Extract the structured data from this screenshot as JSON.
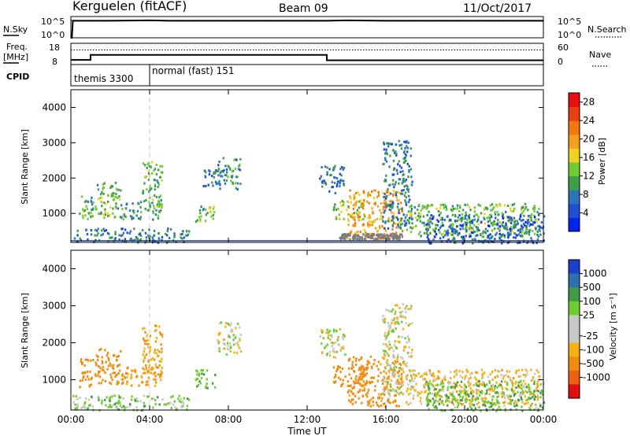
{
  "header": {
    "station": "Kerguelen (fitACF)",
    "beam": "Beam 09",
    "date": "11/Oct/2017"
  },
  "top_panels": {
    "nsky": {
      "left_label": "N.Sky",
      "left_ticks": [
        "10^5",
        "10^0"
      ],
      "right_ticks": [
        "10^5",
        "10^0"
      ],
      "right_label": "N.Search"
    },
    "freq": {
      "left_label_line1": "Freq.",
      "left_label_line2": "[MHz]",
      "left_ticks": [
        "18",
        "8"
      ],
      "right_ticks": [
        "60",
        "0"
      ],
      "right_label": "Nave"
    },
    "cpid": {
      "label": "CPID",
      "segments": [
        "themis 3300",
        "normal (fast) 151"
      ]
    }
  },
  "colors": {
    "power": [
      "#0022ee",
      "#1f4fd2",
      "#2f73b8",
      "#3f9e4a",
      "#6fcc33",
      "#f0d020",
      "#f5a020",
      "#ef7a10",
      "#e84010",
      "#e81010"
    ],
    "velocity": [
      "#1a3fc8",
      "#2f6fb0",
      "#3f9a4a",
      "#6fcc33",
      "#c8c8c8",
      "#c8c8c8",
      "#f5b018",
      "#f08c10",
      "#ef6010",
      "#e01010"
    ],
    "ground": "#7d7d7d"
  },
  "chart_data": [
    {
      "type": "line",
      "panel": "nsky",
      "x_unit": "UT hours",
      "series": [
        {
          "name": "N.Sky",
          "style": "solid",
          "x": [
            0,
            0.05,
            0.1,
            2,
            4,
            5,
            8,
            11,
            13,
            14,
            16,
            20,
            24
          ],
          "y": [
            0,
            0,
            4.0,
            4.0,
            4.1,
            4.0,
            4.0,
            4.0,
            4.0,
            4.1,
            4.0,
            4.0,
            4.0
          ]
        },
        {
          "name": "N.Search",
          "style": "dotted",
          "x": [
            0,
            24
          ],
          "y": [
            4.1,
            4.1
          ]
        }
      ],
      "ylim": [
        0,
        5
      ]
    },
    {
      "type": "line",
      "panel": "freq",
      "x_unit": "UT hours",
      "series": [
        {
          "name": "Freq",
          "style": "solid",
          "x": [
            0,
            1.0,
            1.0,
            13.0,
            13.0,
            24
          ],
          "y": [
            10.2,
            10.2,
            12.5,
            12.5,
            10.0,
            10.0
          ]
        },
        {
          "name": "Nave",
          "style": "dotted",
          "x": [
            0,
            24
          ],
          "y": [
            41,
            41
          ]
        }
      ],
      "ylim_left": [
        8,
        18
      ],
      "ylim_right": [
        0,
        60
      ]
    },
    {
      "type": "heatmap",
      "panel": "power",
      "x_unit": "UT hours",
      "ylabel": "Slant Range [km]",
      "xlim": [
        0,
        24
      ],
      "ylim": [
        180,
        4500
      ],
      "yticks": [
        1000,
        2000,
        3000,
        4000
      ],
      "colorbar": {
        "label": "Power [dB]",
        "ticks": [
          4,
          8,
          12,
          16,
          20,
          24,
          28
        ],
        "range": [
          0,
          30
        ]
      },
      "regions": [
        {
          "t": [
            0.4,
            1.1
          ],
          "r": [
            800,
            1600
          ],
          "v": 12
        },
        {
          "t": [
            1.2,
            2.5
          ],
          "r": [
            900,
            1900
          ],
          "v": 12
        },
        {
          "t": [
            2.5,
            4.6
          ],
          "r": [
            850,
            1400
          ],
          "v": 10
        },
        {
          "t": [
            3.6,
            4.6
          ],
          "r": [
            1200,
            2500
          ],
          "v": 12
        },
        {
          "t": [
            6.3,
            7.3
          ],
          "r": [
            800,
            1300
          ],
          "v": 12
        },
        {
          "t": [
            6.7,
            7.6
          ],
          "r": [
            1800,
            2300
          ],
          "v": 8
        },
        {
          "t": [
            7.4,
            8.6
          ],
          "r": [
            1700,
            2600
          ],
          "v": 9
        },
        {
          "t": [
            12.6,
            13.9
          ],
          "r": [
            1600,
            2400
          ],
          "v": 8
        },
        {
          "t": [
            13.3,
            14.9
          ],
          "r": [
            850,
            1400
          ],
          "v": 14
        },
        {
          "t": [
            14.0,
            16.8
          ],
          "r": [
            300,
            1700
          ],
          "v": 20
        },
        {
          "t": [
            15.8,
            17.3
          ],
          "r": [
            600,
            3100
          ],
          "v": 8
        },
        {
          "t": [
            17.0,
            23.8
          ],
          "r": [
            350,
            1300
          ],
          "v": 12
        },
        {
          "t": [
            0.0,
            6.0
          ],
          "r": [
            200,
            600
          ],
          "v": 8
        },
        {
          "t": [
            18.0,
            24.0
          ],
          "r": [
            180,
            1000
          ],
          "v": 6
        }
      ],
      "ground": [
        {
          "t": [
            13.6,
            16.8
          ],
          "r": [
            300,
            450
          ]
        }
      ]
    },
    {
      "type": "heatmap",
      "panel": "velocity",
      "x_unit": "UT hours",
      "ylabel": "Slant Range [km]",
      "xlabel": "Time UT",
      "xlim": [
        0,
        24
      ],
      "ylim": [
        180,
        4500
      ],
      "xticks": [
        "00:00",
        "04:00",
        "08:00",
        "12:00",
        "16:00",
        "20:00",
        "00:00"
      ],
      "yticks": [
        1000,
        2000,
        3000,
        4000
      ],
      "colorbar": {
        "label": "Velocity [m s⁻¹]",
        "ticks": [
          "1000",
          "500",
          "100",
          "25",
          "-25",
          "-100",
          "-500",
          "-1000"
        ]
      },
      "regions": [
        {
          "t": [
            0.4,
            1.1
          ],
          "r": [
            800,
            1600
          ],
          "v": -300
        },
        {
          "t": [
            1.2,
            2.5
          ],
          "r": [
            900,
            1900
          ],
          "v": -250
        },
        {
          "t": [
            2.5,
            4.6
          ],
          "r": [
            850,
            1400
          ],
          "v": -120
        },
        {
          "t": [
            3.6,
            4.6
          ],
          "r": [
            1200,
            2500
          ],
          "v": -80
        },
        {
          "t": [
            6.3,
            7.3
          ],
          "r": [
            800,
            1300
          ],
          "v": 90
        },
        {
          "t": [
            7.4,
            8.6
          ],
          "r": [
            1700,
            2600
          ],
          "v": 0
        },
        {
          "t": [
            12.6,
            13.9
          ],
          "r": [
            1600,
            2400
          ],
          "v": 0
        },
        {
          "t": [
            13.3,
            14.9
          ],
          "r": [
            850,
            1400
          ],
          "v": -300
        },
        {
          "t": [
            14.0,
            16.8
          ],
          "r": [
            300,
            1700
          ],
          "v": -150
        },
        {
          "t": [
            15.8,
            17.3
          ],
          "r": [
            600,
            3100
          ],
          "v": 0
        },
        {
          "t": [
            17.0,
            23.8
          ],
          "r": [
            350,
            1300
          ],
          "v": -60
        },
        {
          "t": [
            0.0,
            6.0
          ],
          "r": [
            200,
            600
          ],
          "v": 60
        },
        {
          "t": [
            18.0,
            24.0
          ],
          "r": [
            180,
            1000
          ],
          "v": 80
        }
      ]
    }
  ]
}
